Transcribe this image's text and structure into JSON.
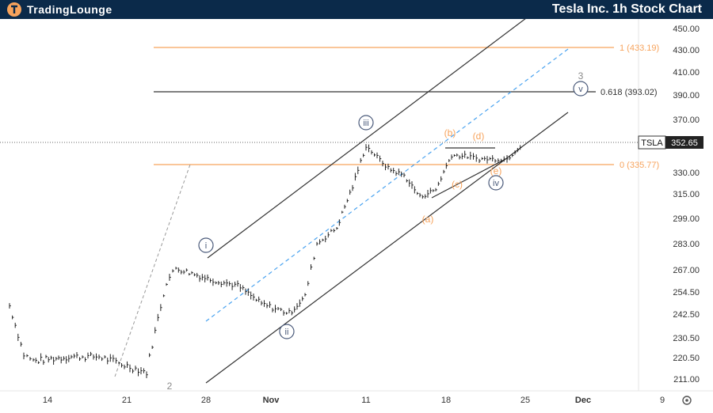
{
  "header": {
    "logo_text": "TradingLounge",
    "title": "Tesla Inc. 1h Stock Chart"
  },
  "chart_data": {
    "type": "line",
    "symbol": "TSLA",
    "last_price": "352.65",
    "y_ticks": [
      "450.00",
      "430.00",
      "410.00",
      "390.00",
      "370.00",
      "350.00",
      "330.00",
      "315.00",
      "299.00",
      "283.00",
      "267.00",
      "254.50",
      "242.50",
      "230.50",
      "220.50",
      "211.00"
    ],
    "x_ticks": [
      "14",
      "21",
      "28",
      "Nov",
      "11",
      "18",
      "25",
      "Dec",
      "9"
    ],
    "levels": [
      {
        "label": "1 (433.19)",
        "value": 433.19,
        "color": "#f7a35c"
      },
      {
        "label": "0.618 (393.02)",
        "value": 393.02,
        "color": "#333333"
      },
      {
        "label": "0 (335.77)",
        "value": 335.77,
        "color": "#f7a35c"
      }
    ],
    "wave_labels": {
      "primary": [
        "2",
        "3"
      ],
      "minor": [
        "i",
        "ii",
        "iii",
        "iv",
        "v"
      ],
      "sub": [
        "(a)",
        "(b)",
        "(c)",
        "(d)",
        "(e)"
      ]
    },
    "price_series_approx": [
      [
        "Oct 10",
        247
      ],
      [
        "Oct 11",
        222
      ],
      [
        "Oct 14",
        219
      ],
      [
        "Oct 16",
        221
      ],
      [
        "Oct 18",
        221
      ],
      [
        "Oct 21",
        218
      ],
      [
        "Oct 23",
        214
      ],
      [
        "Oct 24",
        260
      ],
      [
        "Oct 25",
        268
      ],
      [
        "Oct 28",
        262
      ],
      [
        "Oct 30",
        258
      ],
      [
        "Nov 1",
        248
      ],
      [
        "Nov 4",
        243
      ],
      [
        "Nov 5",
        252
      ],
      [
        "Nov 6",
        283
      ],
      [
        "Nov 7",
        293
      ],
      [
        "Nov 8",
        320
      ],
      [
        "Nov 11",
        350
      ],
      [
        "Nov 12",
        333
      ],
      [
        "Nov 13",
        328
      ],
      [
        "Nov 14",
        313
      ],
      [
        "Nov 15",
        318
      ],
      [
        "Nov 18",
        343
      ],
      [
        "Nov 19",
        342
      ],
      [
        "Nov 20",
        340
      ],
      [
        "Nov 21",
        340
      ],
      [
        "Nov 22",
        340
      ],
      [
        "Nov 25",
        352
      ]
    ]
  }
}
